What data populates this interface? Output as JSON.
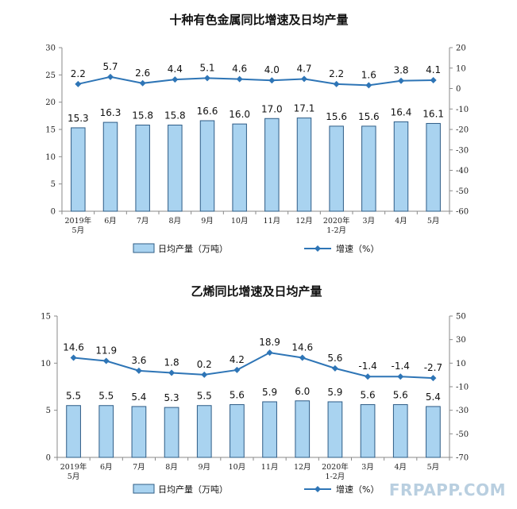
{
  "colors": {
    "bar_fill": "#a9d3f0",
    "bar_stroke": "#2e5c86",
    "line": "#2e75b6",
    "axis": "#8a8a8a",
    "watermark": "#b9cfe0"
  },
  "watermark": "FRPAPP.COM",
  "chart_data": [
    {
      "type": "bar",
      "title": "十种有色金属同比增速及日均产量",
      "categories": [
        "2019年\n5月",
        "6月",
        "7月",
        "8月",
        "9月",
        "10月",
        "11月",
        "12月",
        "2020年\n1-2月",
        "3月",
        "4月",
        "5月"
      ],
      "series": [
        {
          "name": "日均产量（万吨）",
          "type": "bar",
          "axis": "left",
          "values": [
            15.3,
            16.3,
            15.8,
            15.8,
            16.6,
            16.0,
            17.0,
            17.1,
            15.6,
            15.6,
            16.4,
            16.1
          ]
        },
        {
          "name": "增速（%）",
          "type": "line",
          "axis": "right",
          "values": [
            2.2,
            5.7,
            2.6,
            4.4,
            5.1,
            4.6,
            4.0,
            4.7,
            2.2,
            1.6,
            3.8,
            4.1
          ]
        }
      ],
      "ylim": [
        0,
        30
      ],
      "yticks": [
        0,
        5,
        10,
        15,
        20,
        25,
        30
      ],
      "y2lim": [
        -60,
        20
      ],
      "y2ticks": [
        -60,
        -50,
        -40,
        -30,
        -20,
        -10,
        0,
        10,
        20
      ],
      "legend_position": "bottom"
    },
    {
      "type": "bar",
      "title": "乙烯同比增速及日均产量",
      "categories": [
        "2019年\n5月",
        "6月",
        "7月",
        "8月",
        "9月",
        "10月",
        "11月",
        "12月",
        "2020年\n1-2月",
        "3月",
        "4月",
        "5月"
      ],
      "series": [
        {
          "name": "日均产量（万吨）",
          "type": "bar",
          "axis": "left",
          "values": [
            5.5,
            5.5,
            5.4,
            5.3,
            5.5,
            5.6,
            5.9,
            6.0,
            5.9,
            5.6,
            5.6,
            5.4
          ]
        },
        {
          "name": "增速（%）",
          "type": "line",
          "axis": "right",
          "values": [
            14.6,
            11.9,
            3.6,
            1.8,
            0.2,
            4.2,
            18.9,
            14.6,
            5.6,
            -1.4,
            -1.4,
            -2.7
          ]
        }
      ],
      "ylim": [
        0,
        15
      ],
      "yticks": [
        0,
        5,
        10,
        15
      ],
      "y2lim": [
        -70,
        50
      ],
      "y2ticks": [
        -70,
        -50,
        -30,
        -10,
        10,
        30,
        50
      ],
      "legend_position": "bottom"
    }
  ]
}
